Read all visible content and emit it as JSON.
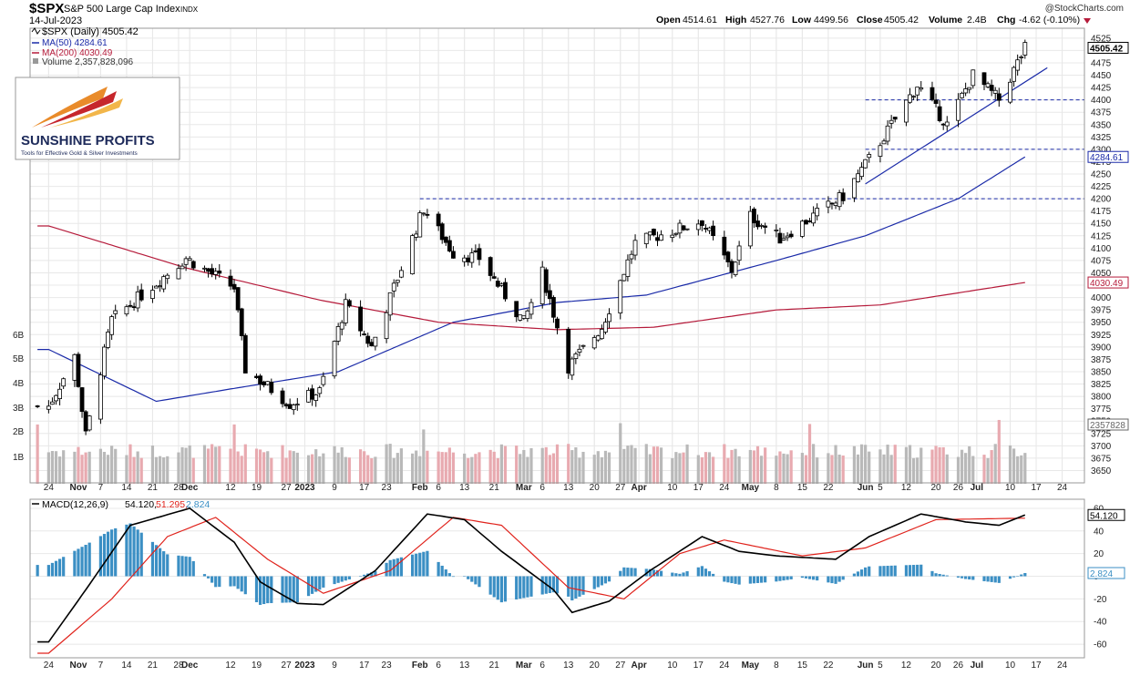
{
  "header": {
    "symbol": "$SPX",
    "name": "S&P 500 Large Cap Index",
    "exchange": "INDX",
    "date": "14-Jul-2023",
    "copyright": "@StockCharts.com",
    "ohlc": {
      "open_label": "Open",
      "open": "4514.61",
      "high_label": "High",
      "high": "4527.76",
      "low_label": "Low",
      "low": "4499.56",
      "close_label": "Close",
      "close": "4505.42",
      "volume_label": "Volume",
      "volume": "2.4B",
      "chg_label": "Chg",
      "chg": "-4.62 (-0.10%)"
    }
  },
  "legend": {
    "price": "$SPX (Daily) 4505.42",
    "ma50": "MA(50) 4284.61",
    "ma200": "MA(200) 4030.49",
    "volume": "Volume 2,357,828,096",
    "macd_name": "MACD(12,26,9)",
    "macd_v1": "54.120,",
    "macd_v2": "51.295,",
    "macd_v3": "2.824"
  },
  "logo": {
    "brand": "SUNSHINE PROFITS",
    "tagline": "Tools for Effective Gold & Silver Investments"
  },
  "colors": {
    "up": "#ffffff",
    "down": "#000000",
    "ma50": "#1a2aa8",
    "ma200": "#b51a3a",
    "vol_up": "#b9b9b9",
    "vol_down": "#e8aab0",
    "macd_line": "#000000",
    "signal_line": "#e0231c",
    "hist": "#3b8fc4",
    "trend": "#1a2aa8"
  },
  "chart_data": [
    {
      "type": "line",
      "title": "$SPX (Daily)",
      "ylim": [
        3625,
        4545
      ],
      "y_ticks": [
        "4525",
        "4500",
        "4475",
        "4450",
        "4425",
        "4400",
        "4375",
        "4350",
        "4325",
        "4300",
        "4275",
        "4250",
        "4225",
        "4200",
        "4175",
        "4150",
        "4125",
        "4100",
        "4075",
        "4050",
        "4025",
        "4000",
        "3975",
        "3950",
        "3925",
        "3900",
        "3875",
        "3850",
        "3825",
        "3800",
        "3775",
        "3750",
        "3725",
        "3700",
        "3675",
        "3650"
      ],
      "x_labels": [
        "24",
        "Nov",
        "7",
        "14",
        "21",
        "28",
        "Dec",
        "12",
        "19",
        "27",
        "2023",
        "9",
        "17",
        "23",
        "Feb",
        "6",
        "13",
        "21",
        "Mar",
        "6",
        "13",
        "20",
        "27",
        "Apr",
        "10",
        "17",
        "24",
        "May",
        "8",
        "15",
        "22",
        "Jun",
        "5",
        "12",
        "20",
        "26",
        "Jul",
        "10",
        "17",
        "24"
      ],
      "close_anchor_points": [
        {
          "date": "2022-10-24",
          "value": 3780
        },
        {
          "date": "2022-10-31",
          "value": 3880
        },
        {
          "date": "2022-11-03",
          "value": 3720
        },
        {
          "date": "2022-11-10",
          "value": 3955
        },
        {
          "date": "2022-11-30",
          "value": 4080
        },
        {
          "date": "2022-12-13",
          "value": 4020
        },
        {
          "date": "2022-12-16",
          "value": 3855
        },
        {
          "date": "2022-12-28",
          "value": 3785
        },
        {
          "date": "2023-01-05",
          "value": 3810
        },
        {
          "date": "2023-01-12",
          "value": 3985
        },
        {
          "date": "2023-01-19",
          "value": 3900
        },
        {
          "date": "2023-02-02",
          "value": 4180
        },
        {
          "date": "2023-02-10",
          "value": 4090
        },
        {
          "date": "2023-02-17",
          "value": 4080
        },
        {
          "date": "2023-03-01",
          "value": 3950
        },
        {
          "date": "2023-03-06",
          "value": 4050
        },
        {
          "date": "2023-03-13",
          "value": 3860
        },
        {
          "date": "2023-03-22",
          "value": 3940
        },
        {
          "date": "2023-03-31",
          "value": 4110
        },
        {
          "date": "2023-04-18",
          "value": 4155
        },
        {
          "date": "2023-04-26",
          "value": 4055
        },
        {
          "date": "2023-05-01",
          "value": 4165
        },
        {
          "date": "2023-05-09",
          "value": 4120
        },
        {
          "date": "2023-05-26",
          "value": 4205
        },
        {
          "date": "2023-06-02",
          "value": 4280
        },
        {
          "date": "2023-06-15",
          "value": 4430
        },
        {
          "date": "2023-06-23",
          "value": 4350
        },
        {
          "date": "2023-06-30",
          "value": 4450
        },
        {
          "date": "2023-07-07",
          "value": 4400
        },
        {
          "date": "2023-07-14",
          "value": 4505
        }
      ],
      "series": [
        {
          "name": "MA(50)",
          "last": 4284.61,
          "anchor_points": [
            {
              "date": "2022-10-24",
              "value": 3895
            },
            {
              "date": "2022-11-22",
              "value": 3790
            },
            {
              "date": "2022-12-12",
              "value": 3815
            },
            {
              "date": "2023-01-10",
              "value": 3850
            },
            {
              "date": "2023-02-10",
              "value": 3950
            },
            {
              "date": "2023-03-10",
              "value": 3990
            },
            {
              "date": "2023-04-03",
              "value": 4005
            },
            {
              "date": "2023-05-08",
              "value": 4075
            },
            {
              "date": "2023-06-01",
              "value": 4125
            },
            {
              "date": "2023-06-26",
              "value": 4200
            },
            {
              "date": "2023-07-14",
              "value": 4284.61
            }
          ]
        },
        {
          "name": "MA(200)",
          "last": 4030.49,
          "anchor_points": [
            {
              "date": "2022-10-24",
              "value": 4145
            },
            {
              "date": "2022-11-30",
              "value": 4060
            },
            {
              "date": "2023-01-05",
              "value": 3995
            },
            {
              "date": "2023-02-06",
              "value": 3950
            },
            {
              "date": "2023-03-10",
              "value": 3935
            },
            {
              "date": "2023-04-05",
              "value": 3940
            },
            {
              "date": "2023-05-08",
              "value": 3975
            },
            {
              "date": "2023-06-05",
              "value": 3985
            },
            {
              "date": "2023-07-14",
              "value": 4030.49
            }
          ]
        }
      ],
      "horizontal_levels": [
        {
          "value": 4400,
          "from": "2023-06-01"
        },
        {
          "value": 4300,
          "from": "2023-06-01"
        },
        {
          "value": 4200,
          "from": "2023-02-01"
        }
      ],
      "trendline": [
        {
          "date": "2023-06-01",
          "value": 4230
        },
        {
          "date": "2023-07-20",
          "value": 4465
        }
      ],
      "value_labels": [
        "4505.42",
        "4284.61",
        "4030.49",
        "2357828"
      ],
      "volume_ticks": [
        "6B",
        "5B",
        "4B",
        "3B",
        "2B",
        "1B"
      ]
    },
    {
      "type": "line",
      "title": "MACD(12,26,9)",
      "ylim": [
        -72,
        68
      ],
      "y_ticks": [
        "60",
        "40",
        "20",
        "0",
        "-20",
        "-40",
        "-60"
      ],
      "series": [
        {
          "name": "MACD",
          "last": 54.12,
          "anchor_points": [
            {
              "date": "2022-10-24",
              "value": -58
            },
            {
              "date": "2022-11-03",
              "value": -12
            },
            {
              "date": "2022-11-15",
              "value": 45
            },
            {
              "date": "2022-12-01",
              "value": 60
            },
            {
              "date": "2022-12-13",
              "value": 30
            },
            {
              "date": "2022-12-20",
              "value": -5
            },
            {
              "date": "2022-12-30",
              "value": -24
            },
            {
              "date": "2023-01-06",
              "value": -25
            },
            {
              "date": "2023-01-20",
              "value": 5
            },
            {
              "date": "2023-02-03",
              "value": 55
            },
            {
              "date": "2023-02-13",
              "value": 50
            },
            {
              "date": "2023-02-23",
              "value": 22
            },
            {
              "date": "2023-03-09",
              "value": -12
            },
            {
              "date": "2023-03-14",
              "value": -32
            },
            {
              "date": "2023-03-24",
              "value": -22
            },
            {
              "date": "2023-04-04",
              "value": 5
            },
            {
              "date": "2023-04-18",
              "value": 35
            },
            {
              "date": "2023-04-28",
              "value": 22
            },
            {
              "date": "2023-05-08",
              "value": 18
            },
            {
              "date": "2023-05-24",
              "value": 15
            },
            {
              "date": "2023-06-02",
              "value": 35
            },
            {
              "date": "2023-06-16",
              "value": 55
            },
            {
              "date": "2023-06-28",
              "value": 48
            },
            {
              "date": "2023-07-07",
              "value": 45
            },
            {
              "date": "2023-07-14",
              "value": 54.12
            }
          ]
        },
        {
          "name": "Signal",
          "last": 51.295,
          "anchor_points": [
            {
              "date": "2022-10-24",
              "value": -68
            },
            {
              "date": "2022-11-10",
              "value": -20
            },
            {
              "date": "2022-11-25",
              "value": 35
            },
            {
              "date": "2022-12-08",
              "value": 52
            },
            {
              "date": "2022-12-22",
              "value": 15
            },
            {
              "date": "2023-01-06",
              "value": -15
            },
            {
              "date": "2023-01-24",
              "value": 5
            },
            {
              "date": "2023-02-10",
              "value": 52
            },
            {
              "date": "2023-02-23",
              "value": 45
            },
            {
              "date": "2023-03-13",
              "value": -10
            },
            {
              "date": "2023-03-28",
              "value": -20
            },
            {
              "date": "2023-04-12",
              "value": 20
            },
            {
              "date": "2023-04-24",
              "value": 32
            },
            {
              "date": "2023-05-15",
              "value": 18
            },
            {
              "date": "2023-06-01",
              "value": 25
            },
            {
              "date": "2023-06-20",
              "value": 50
            },
            {
              "date": "2023-07-14",
              "value": 51.295
            }
          ]
        },
        {
          "name": "Histogram",
          "last": 2.824
        }
      ]
    }
  ]
}
